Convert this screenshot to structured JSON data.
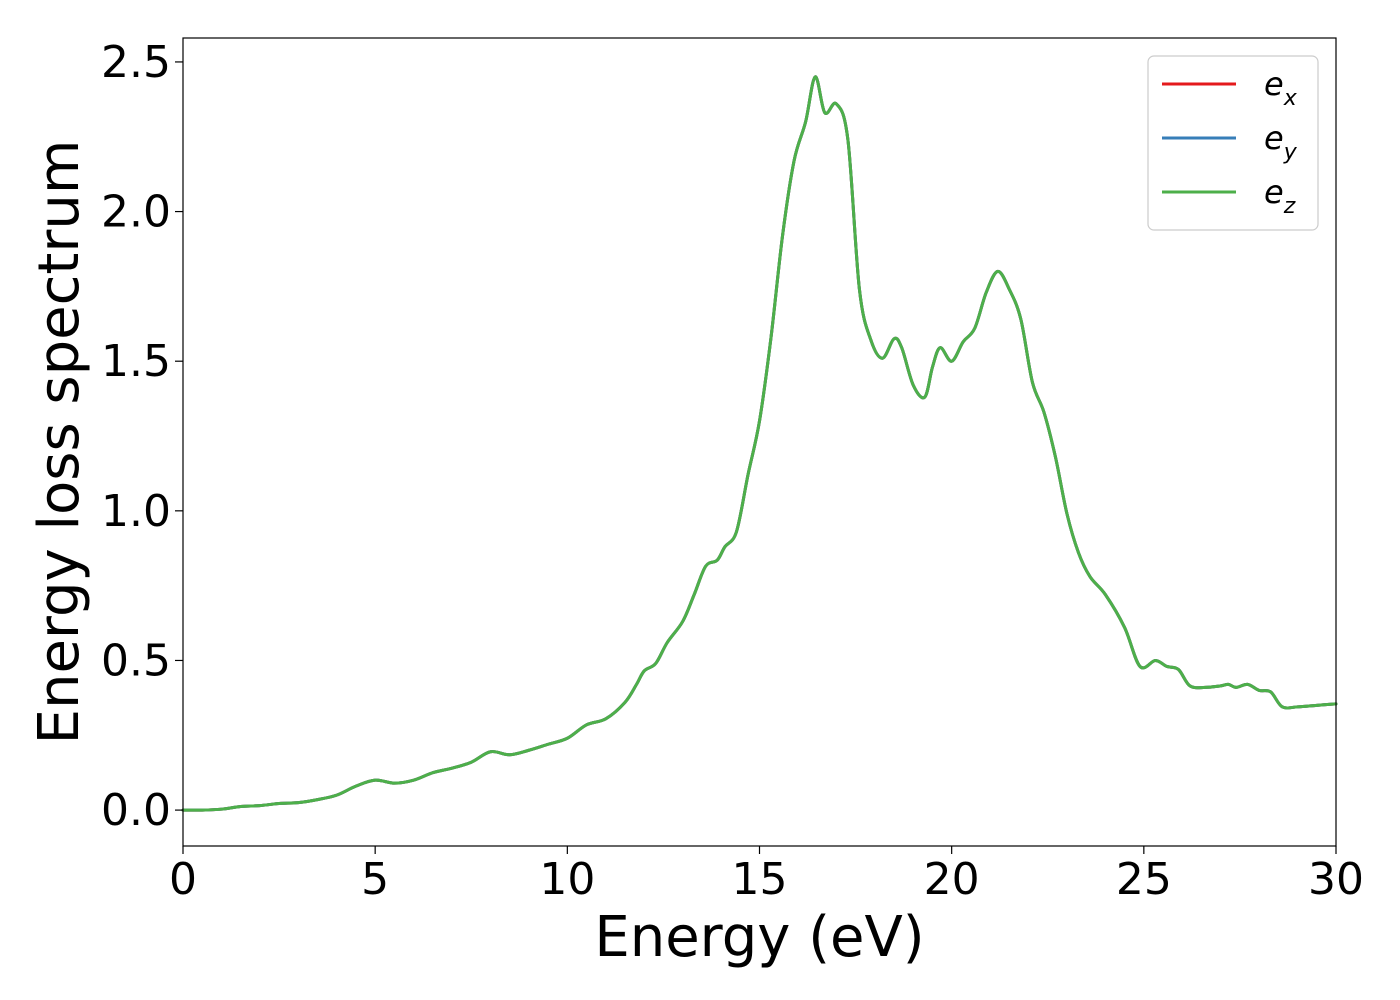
{
  "chart_data": {
    "type": "line",
    "title": "",
    "xlabel": "Energy (eV)",
    "ylabel": "Energy loss spectrum",
    "xlim": [
      0,
      30
    ],
    "ylim": [
      -0.12,
      2.58
    ],
    "xticks": [
      0,
      5,
      10,
      15,
      20,
      25,
      30
    ],
    "yticks": [
      0.0,
      0.5,
      1.0,
      1.5,
      2.0,
      2.5
    ],
    "xtick_labels": [
      "0",
      "5",
      "10",
      "15",
      "20",
      "25",
      "30"
    ],
    "ytick_labels": [
      "0.0",
      "0.5",
      "1.0",
      "1.5",
      "2.0",
      "2.5"
    ],
    "grid": false,
    "legend_position": "top-right",
    "x": [
      0,
      0.5,
      1.0,
      1.5,
      2.0,
      2.5,
      3.0,
      3.5,
      4.0,
      4.5,
      5.0,
      5.5,
      6.0,
      6.5,
      7.0,
      7.5,
      8.0,
      8.5,
      9.0,
      9.5,
      10.0,
      10.5,
      11.0,
      11.5,
      11.8,
      12.0,
      12.3,
      12.6,
      13.0,
      13.3,
      13.6,
      13.9,
      14.1,
      14.4,
      14.7,
      15.0,
      15.3,
      15.6,
      15.9,
      16.2,
      16.45,
      16.7,
      17.0,
      17.3,
      17.6,
      17.9,
      18.2,
      18.5,
      18.7,
      19.0,
      19.3,
      19.5,
      19.7,
      20.0,
      20.3,
      20.6,
      20.9,
      21.2,
      21.5,
      21.8,
      22.1,
      22.4,
      22.7,
      23.0,
      23.3,
      23.6,
      24.0,
      24.5,
      24.9,
      25.3,
      25.6,
      25.9,
      26.2,
      26.6,
      27.0,
      27.2,
      27.4,
      27.7,
      28.0,
      28.3,
      28.6,
      29.0,
      29.5,
      30.0
    ],
    "series": [
      {
        "name": "e_x",
        "color": "#e41a1c",
        "y": [
          0.0,
          0.0,
          0.003,
          0.012,
          0.015,
          0.022,
          0.025,
          0.035,
          0.05,
          0.08,
          0.1,
          0.09,
          0.1,
          0.125,
          0.14,
          0.16,
          0.195,
          0.185,
          0.2,
          0.22,
          0.24,
          0.285,
          0.305,
          0.36,
          0.42,
          0.465,
          0.49,
          0.56,
          0.63,
          0.72,
          0.815,
          0.835,
          0.88,
          0.93,
          1.12,
          1.3,
          1.58,
          1.92,
          2.17,
          2.3,
          2.45,
          2.33,
          2.36,
          2.24,
          1.74,
          1.57,
          1.51,
          1.575,
          1.545,
          1.42,
          1.38,
          1.48,
          1.545,
          1.5,
          1.565,
          1.61,
          1.73,
          1.8,
          1.74,
          1.64,
          1.43,
          1.33,
          1.18,
          0.99,
          0.86,
          0.78,
          0.72,
          0.61,
          0.48,
          0.5,
          0.48,
          0.47,
          0.415,
          0.41,
          0.415,
          0.42,
          0.41,
          0.42,
          0.4,
          0.395,
          0.345,
          0.345,
          0.35,
          0.355
        ]
      },
      {
        "name": "e_y",
        "color": "#377eb8",
        "y": [
          0.0,
          0.0,
          0.003,
          0.012,
          0.015,
          0.022,
          0.025,
          0.035,
          0.05,
          0.08,
          0.1,
          0.09,
          0.1,
          0.125,
          0.14,
          0.16,
          0.195,
          0.185,
          0.2,
          0.22,
          0.24,
          0.285,
          0.305,
          0.36,
          0.42,
          0.465,
          0.49,
          0.56,
          0.63,
          0.72,
          0.815,
          0.835,
          0.88,
          0.93,
          1.12,
          1.3,
          1.58,
          1.92,
          2.17,
          2.3,
          2.45,
          2.33,
          2.36,
          2.24,
          1.74,
          1.57,
          1.51,
          1.575,
          1.545,
          1.42,
          1.38,
          1.48,
          1.545,
          1.5,
          1.565,
          1.61,
          1.73,
          1.8,
          1.74,
          1.64,
          1.43,
          1.33,
          1.18,
          0.99,
          0.86,
          0.78,
          0.72,
          0.61,
          0.48,
          0.5,
          0.48,
          0.47,
          0.415,
          0.41,
          0.415,
          0.42,
          0.41,
          0.42,
          0.4,
          0.395,
          0.345,
          0.345,
          0.35,
          0.355
        ]
      },
      {
        "name": "e_z",
        "color": "#4daf4a",
        "y": [
          0.0,
          0.0,
          0.003,
          0.012,
          0.015,
          0.022,
          0.025,
          0.035,
          0.05,
          0.08,
          0.1,
          0.09,
          0.1,
          0.125,
          0.14,
          0.16,
          0.195,
          0.185,
          0.2,
          0.22,
          0.24,
          0.285,
          0.305,
          0.36,
          0.42,
          0.465,
          0.49,
          0.56,
          0.63,
          0.72,
          0.815,
          0.835,
          0.88,
          0.93,
          1.12,
          1.3,
          1.58,
          1.92,
          2.17,
          2.3,
          2.45,
          2.33,
          2.36,
          2.24,
          1.74,
          1.57,
          1.51,
          1.575,
          1.545,
          1.42,
          1.38,
          1.48,
          1.545,
          1.5,
          1.565,
          1.61,
          1.73,
          1.8,
          1.74,
          1.64,
          1.43,
          1.33,
          1.18,
          0.99,
          0.86,
          0.78,
          0.72,
          0.61,
          0.48,
          0.5,
          0.48,
          0.47,
          0.415,
          0.41,
          0.415,
          0.42,
          0.41,
          0.42,
          0.4,
          0.395,
          0.345,
          0.345,
          0.35,
          0.355
        ]
      }
    ],
    "legend": [
      {
        "base": "e",
        "sub": "x",
        "color": "#e41a1c"
      },
      {
        "base": "e",
        "sub": "y",
        "color": "#377eb8"
      },
      {
        "base": "e",
        "sub": "z",
        "color": "#4daf4a"
      }
    ]
  }
}
